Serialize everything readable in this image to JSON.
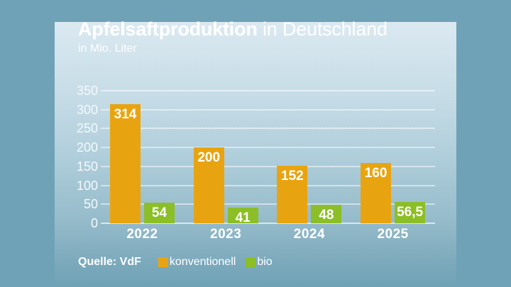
{
  "header": {
    "title_bold": "Apfelsaftproduktion",
    "title_rest": " in Deutschland",
    "subtitle": "in Mio. Liter"
  },
  "footer": {
    "source": "Quelle: VdF"
  },
  "legend": {
    "items": [
      {
        "label": "konventionell",
        "color": "#e8a410"
      },
      {
        "label": "bio",
        "color": "#8cbe27"
      }
    ]
  },
  "colors": {
    "background": "#6fa2b6",
    "panel_top": "#dbe9f1",
    "konventionell": "#e8a410",
    "bio": "#8cbe27",
    "text": "#ffffff",
    "gridline": "rgba(255,255,255,0.5)"
  },
  "chart_data": {
    "type": "bar",
    "title": "Apfelsaftproduktion in Deutschland",
    "subtitle": "in Mio. Liter",
    "categories": [
      "2022",
      "2023",
      "2024",
      "2025"
    ],
    "series": [
      {
        "name": "konventionell",
        "color": "#e8a410",
        "values": [
          314,
          200,
          152,
          160
        ],
        "display": [
          "314",
          "200",
          "152",
          "160"
        ]
      },
      {
        "name": "bio",
        "color": "#8cbe27",
        "values": [
          54,
          41,
          48,
          56.5
        ],
        "display": [
          "54",
          "41",
          "48",
          "56,5"
        ]
      }
    ],
    "xlabel": "",
    "ylabel": "in Mio. Liter",
    "ylim": [
      0,
      350
    ],
    "ytick_step": 50,
    "grid": true,
    "legend_position": "bottom",
    "value_labels": "inside-top"
  }
}
